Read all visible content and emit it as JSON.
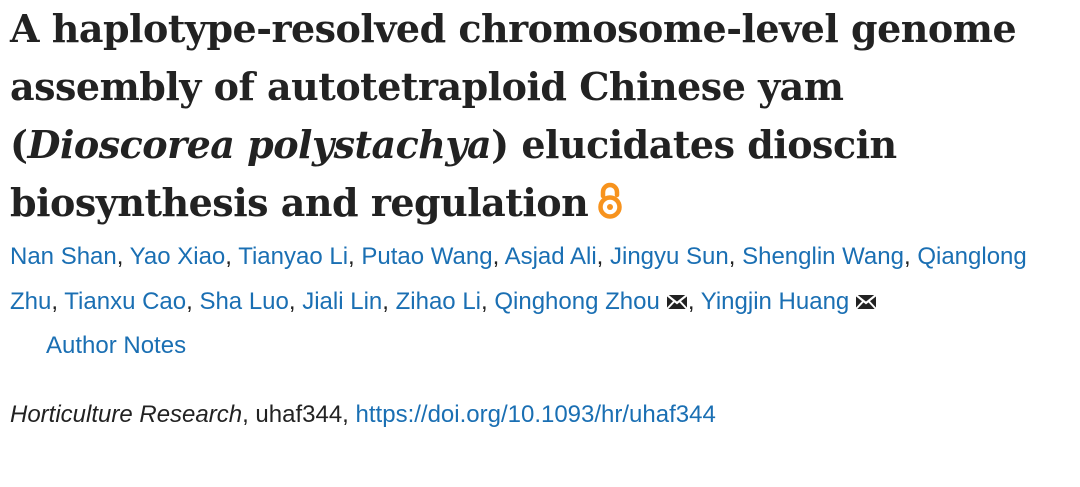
{
  "article": {
    "title_part1": "A haplotype-resolved chromosome-level genome assembly of autotetraploid Chinese yam (",
    "title_italic1": "Dioscorea polystachya",
    "title_part2": ") elucidates dioscin biosynthesis and regulation",
    "open_access_icon": "open-access-icon",
    "authors": [
      "Nan Shan",
      "Yao Xiao",
      "Tianyao Li",
      "Putao Wang",
      "Asjad Ali",
      "Jingyu Sun",
      "Shenglin Wang",
      "Qianglong Zhu",
      "Tianxu Cao",
      "Sha Luo",
      "Jiali Lin",
      "Zihao Li",
      "Qinghong Zhou",
      "Yingjin Huang"
    ],
    "separator": ", ",
    "author_notes_label": "Author Notes",
    "citation": {
      "journal": "Horticulture Research",
      "article_id": ", uhaf344, ",
      "doi": "https://doi.org/10.1093/hr/uhaf344"
    }
  },
  "colors": {
    "link": "#1a6fb3",
    "text": "#222222",
    "open_access": "#f7931e"
  }
}
